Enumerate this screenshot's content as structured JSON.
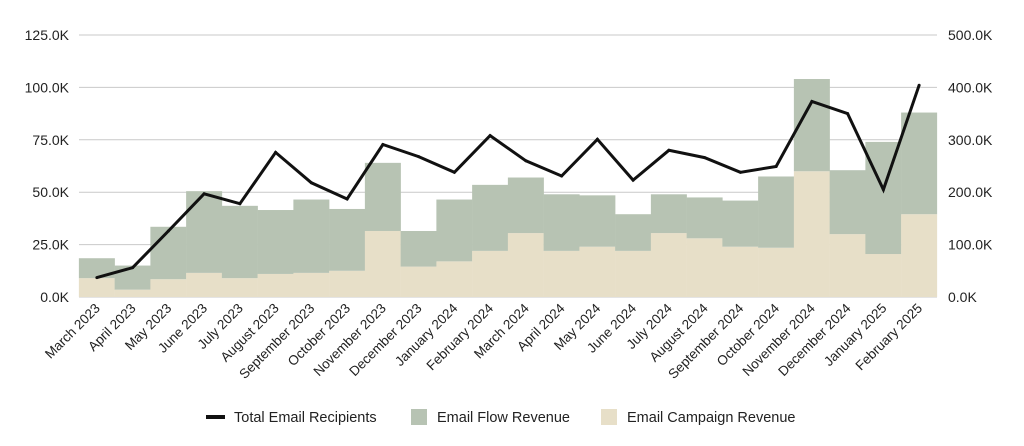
{
  "chart_data": {
    "type": "bar",
    "stacked": true,
    "categories": [
      "March 2023",
      "April 2023",
      "May 2023",
      "June 2023",
      "July 2023",
      "August 2023",
      "September 2023",
      "October 2023",
      "November 2023",
      "December 2023",
      "January 2024",
      "February 2024",
      "March 2024",
      "April 2024",
      "May 2024",
      "June 2024",
      "July 2024",
      "August 2024",
      "September 2024",
      "October 2024",
      "November 2024",
      "December 2024",
      "January 2025",
      "February 2025"
    ],
    "series": [
      {
        "name": "Email Campaign Revenue",
        "kind": "bar",
        "axis": "left",
        "color": "#e7dfc8",
        "values": [
          9000,
          3500,
          8500,
          11500,
          9000,
          11000,
          11500,
          12500,
          31500,
          14500,
          17000,
          22000,
          30500,
          22000,
          24000,
          22000,
          30500,
          28000,
          24000,
          23500,
          60000,
          30000,
          20500,
          39500
        ]
      },
      {
        "name": "Email Flow Revenue",
        "kind": "bar",
        "axis": "left",
        "color": "#b7c3b3",
        "values": [
          9500,
          11500,
          25000,
          39000,
          34500,
          30500,
          35000,
          29500,
          32500,
          17000,
          29500,
          31500,
          26500,
          27000,
          24500,
          17500,
          18500,
          19500,
          22000,
          34000,
          44000,
          30500,
          53500,
          48500
        ]
      },
      {
        "name": "Total Email Recipients",
        "kind": "line",
        "axis": "right",
        "color": "#111111",
        "values": [
          37000,
          56000,
          126000,
          197000,
          178000,
          276000,
          218000,
          187000,
          291000,
          268000,
          238000,
          308000,
          260000,
          231000,
          301000,
          223000,
          280000,
          266000,
          238000,
          249000,
          373000,
          350000,
          205000,
          404000
        ]
      }
    ],
    "y_left": {
      "min": 0,
      "max": 125000,
      "ticks": [
        "0.0K",
        "25.0K",
        "50.0K",
        "75.0K",
        "100.0K",
        "125.0K"
      ]
    },
    "y_right": {
      "min": 0,
      "max": 500000,
      "ticks": [
        "0.0K",
        "100.0K",
        "200.0K",
        "300.0K",
        "400.0K",
        "500.0K"
      ]
    },
    "grid": true,
    "legend_position": "bottom",
    "legend": [
      "Total Email Recipients",
      "Email Flow Revenue",
      "Email Campaign Revenue"
    ],
    "title": "",
    "xlabel": "",
    "ylabel": ""
  }
}
